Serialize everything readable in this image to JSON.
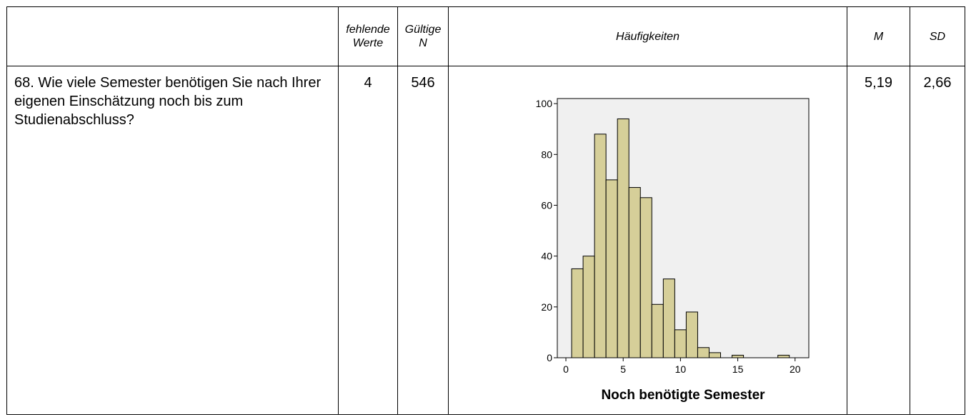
{
  "table": {
    "header": [
      "fehlende Werte",
      "Gültige N",
      "Häufigkeiten",
      "M",
      "SD"
    ],
    "rows": [
      [
        "68. Wie viele Semester benötigen Sie nach Ihrer eigenen Einschätzung noch bis zum Studienabschluss?",
        "4",
        "546",
        "5,19",
        "2,66"
      ]
    ]
  },
  "chart_data": {
    "type": "histogram",
    "x_label": "Noch benötigte Semester",
    "bins": [
      0.5,
      1.5,
      2.5,
      3.5,
      4.5,
      5.5,
      6.5,
      7.5,
      8.5,
      9.5,
      10.5,
      11.5,
      12.5,
      13.5,
      14.5,
      15.5,
      16.5,
      17.5,
      18.5,
      19.5
    ],
    "values": [
      35,
      40,
      88,
      70,
      94,
      67,
      63,
      21,
      31,
      11,
      18,
      4,
      2,
      0,
      1,
      0,
      0,
      0,
      1
    ],
    "color": "#d6cf99",
    "xlim": [
      -0.75,
      21.2
    ],
    "xticks": [
      0,
      5,
      10,
      15,
      20
    ],
    "ylim": [
      0,
      102
    ],
    "yticks": [
      0,
      20,
      40,
      60,
      80,
      100
    ]
  }
}
